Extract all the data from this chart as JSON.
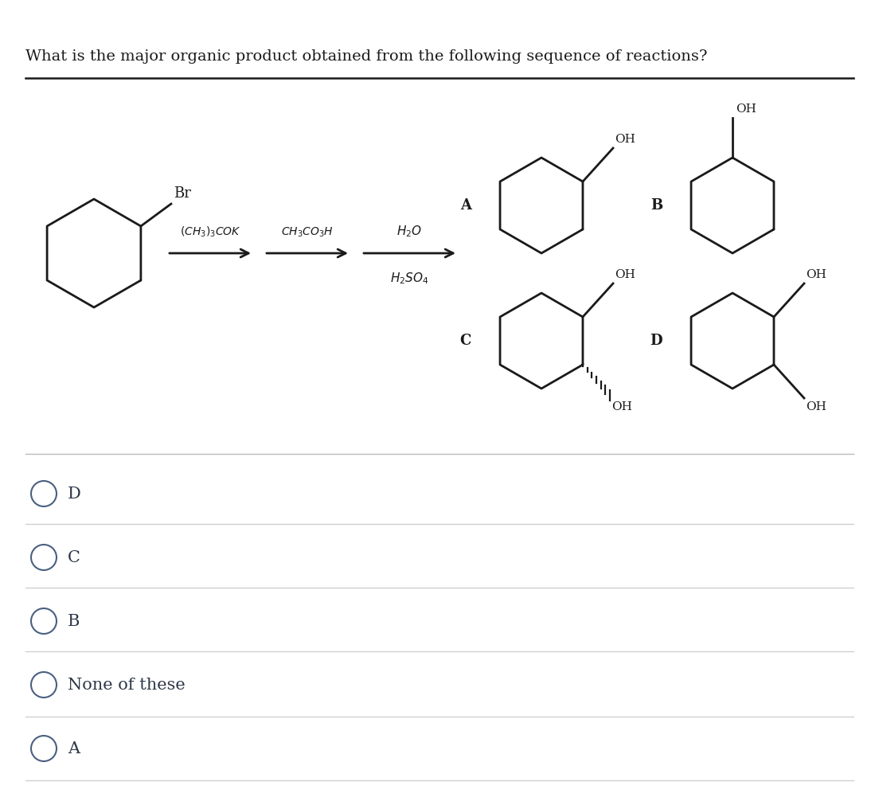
{
  "title": "What is the major organic product obtained from the following sequence of reactions?",
  "bg_color": "#ffffff",
  "text_color": "#1a1a1a",
  "options": [
    "D",
    "C",
    "B",
    "None of these",
    "A"
  ],
  "oh_label": "OH",
  "br_label": "Br"
}
